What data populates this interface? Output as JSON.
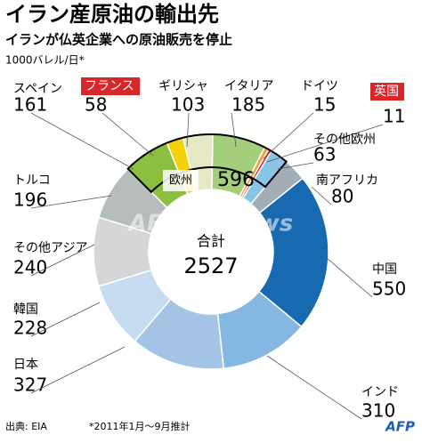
{
  "title": "イラン産原油の輸出先",
  "subtitle": "イランが仏英企業への原油販売を停止",
  "unit": "1000バレル/日*",
  "chart_data": {
    "type": "pie",
    "donut": true,
    "categories": [
      "スペイン",
      "フランス",
      "ギリシャ",
      "イタリア",
      "ドイツ",
      "英国",
      "その他欧州",
      "南アフリカ",
      "中国",
      "インド",
      "日本",
      "韓国",
      "その他アジア",
      "トルコ"
    ],
    "values": [
      161,
      58,
      103,
      185,
      15,
      11,
      63,
      80,
      550,
      310,
      327,
      228,
      240,
      196
    ],
    "colors": [
      "#8cbf3f",
      "#f5d10a",
      "#e6e8c4",
      "#a3cf7c",
      "#e8a33c",
      "#d9262b",
      "#89c4e6",
      "#a3adb6",
      "#1769b0",
      "#84b8e3",
      "#a3c4e4",
      "#c5dcf0",
      "#d6d6d6",
      "#b7bcbc"
    ],
    "highlighted": [
      1,
      5
    ],
    "highlight_color": "#d9262b",
    "group": {
      "label": "欧州",
      "value": 596,
      "range": [
        0,
        6
      ]
    },
    "center_label": "合計",
    "total": 2527
  },
  "watermark": "AFPBB News",
  "source": "出典: EIA",
  "note": "*2011年1月～9月推計",
  "logo": "AFP"
}
